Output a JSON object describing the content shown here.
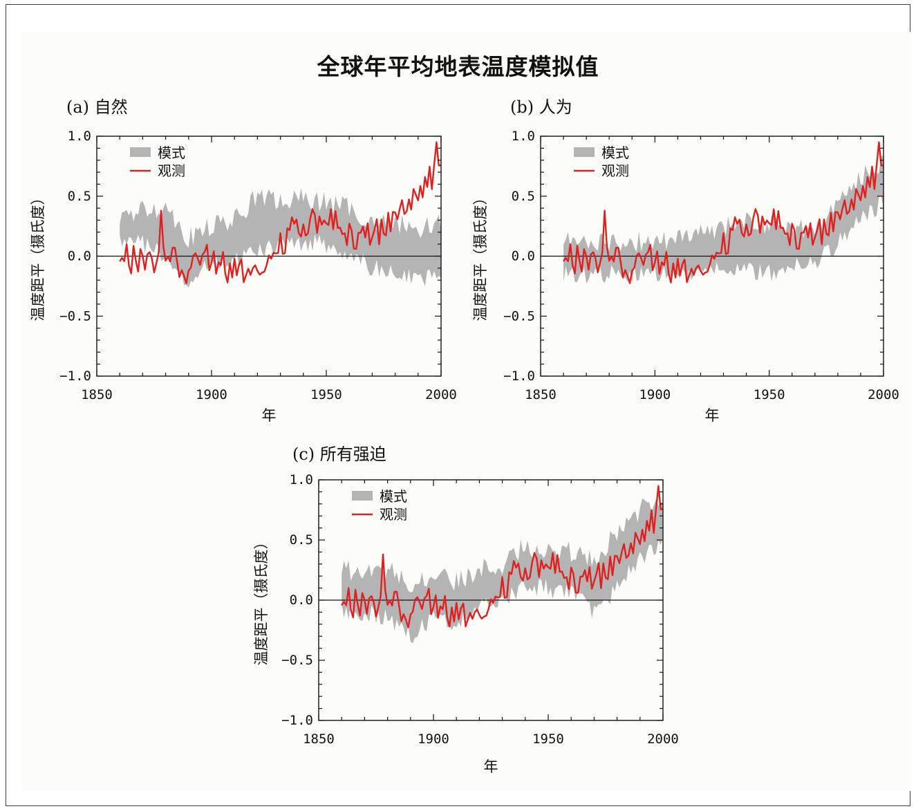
{
  "title": "全球年平均地表温度模拟值",
  "colors": {
    "model_band": "#b4b4b4",
    "observed": "#e0201e",
    "axis": "#111111"
  },
  "chart_data": [
    {
      "panel": "(a) 自然",
      "type": "area",
      "xlabel": "年",
      "ylabel": "温度距平（摄氏度）",
      "xlim": [
        1850,
        2000
      ],
      "ylim": [
        -1.0,
        1.0
      ],
      "xticks": [
        "1850",
        "1900",
        "1950",
        "2000"
      ],
      "yticks": [
        "1.0",
        "0.5",
        "0.0",
        "−0.5",
        "−1.0"
      ],
      "legend": {
        "position": "top-left",
        "entries": [
          "模式",
          "观测"
        ]
      },
      "x": [
        1860,
        1870,
        1880,
        1890,
        1900,
        1910,
        1920,
        1930,
        1940,
        1950,
        1960,
        1970,
        1980,
        1990,
        2000
      ],
      "series": [
        {
          "name": "模式",
          "type": "band",
          "lower": [
            0.12,
            0.1,
            0.0,
            -0.25,
            -0.05,
            -0.05,
            0.05,
            0.08,
            0.12,
            0.1,
            0.0,
            -0.1,
            -0.15,
            -0.2,
            -0.12
          ],
          "upper": [
            0.3,
            0.38,
            0.42,
            0.15,
            0.25,
            0.3,
            0.5,
            0.45,
            0.48,
            0.45,
            0.4,
            0.28,
            0.28,
            0.22,
            0.3
          ]
        },
        {
          "name": "观测",
          "type": "line",
          "values": [
            -0.02,
            -0.05,
            0.02,
            -0.12,
            0.0,
            -0.15,
            -0.05,
            0.1,
            0.3,
            0.28,
            0.2,
            0.15,
            0.3,
            0.55,
            0.72
          ]
        }
      ]
    },
    {
      "panel": "(b) 人为",
      "type": "area",
      "xlabel": "年",
      "ylabel": "温度距平（摄氏度）",
      "xlim": [
        1850,
        2000
      ],
      "ylim": [
        -1.0,
        1.0
      ],
      "xticks": [
        "1850",
        "1900",
        "1950",
        "2000"
      ],
      "yticks": [
        "1.0",
        "0.5",
        "0.0",
        "−0.5",
        "−1.0"
      ],
      "legend": {
        "position": "top-left",
        "entries": [
          "模式",
          "观测"
        ]
      },
      "x": [
        1860,
        1870,
        1880,
        1890,
        1900,
        1910,
        1920,
        1930,
        1940,
        1950,
        1960,
        1970,
        1980,
        1990,
        2000
      ],
      "series": [
        {
          "name": "模式",
          "type": "band",
          "lower": [
            -0.15,
            -0.15,
            -0.15,
            -0.15,
            -0.15,
            -0.15,
            -0.12,
            -0.1,
            -0.1,
            -0.15,
            -0.1,
            -0.05,
            0.1,
            0.3,
            0.45
          ],
          "upper": [
            0.15,
            0.12,
            0.12,
            0.12,
            0.12,
            0.15,
            0.2,
            0.25,
            0.3,
            0.25,
            0.25,
            0.2,
            0.45,
            0.65,
            0.8
          ]
        },
        {
          "name": "观测",
          "type": "line",
          "values": [
            -0.02,
            -0.05,
            0.02,
            -0.12,
            0.0,
            -0.15,
            -0.05,
            0.1,
            0.3,
            0.28,
            0.2,
            0.15,
            0.3,
            0.55,
            0.72
          ]
        }
      ]
    },
    {
      "panel": "(c) 所有强迫",
      "type": "area",
      "xlabel": "年",
      "ylabel": "温度距平（摄氏度）",
      "xlim": [
        1850,
        2000
      ],
      "ylim": [
        -1.0,
        1.0
      ],
      "xticks": [
        "1850",
        "1900",
        "1950",
        "2000"
      ],
      "yticks": [
        "1.0",
        "0.5",
        "0.0",
        "−0.5",
        "−1.0"
      ],
      "legend": {
        "position": "top-left",
        "entries": [
          "模式",
          "观测"
        ]
      },
      "x": [
        1860,
        1870,
        1880,
        1890,
        1900,
        1910,
        1920,
        1930,
        1940,
        1950,
        1960,
        1970,
        1980,
        1990,
        2000
      ],
      "series": [
        {
          "name": "模式",
          "type": "band",
          "lower": [
            -0.1,
            -0.1,
            -0.15,
            -0.3,
            -0.15,
            -0.18,
            -0.05,
            0.0,
            0.12,
            0.1,
            0.05,
            -0.1,
            0.1,
            0.35,
            0.5
          ],
          "upper": [
            0.25,
            0.22,
            0.25,
            0.15,
            0.2,
            0.15,
            0.25,
            0.3,
            0.45,
            0.42,
            0.4,
            0.35,
            0.55,
            0.75,
            0.9
          ]
        },
        {
          "name": "观测",
          "type": "line",
          "values": [
            -0.02,
            -0.05,
            0.02,
            -0.12,
            0.0,
            -0.15,
            -0.05,
            0.1,
            0.3,
            0.28,
            0.2,
            0.15,
            0.3,
            0.55,
            0.72
          ]
        }
      ]
    }
  ]
}
